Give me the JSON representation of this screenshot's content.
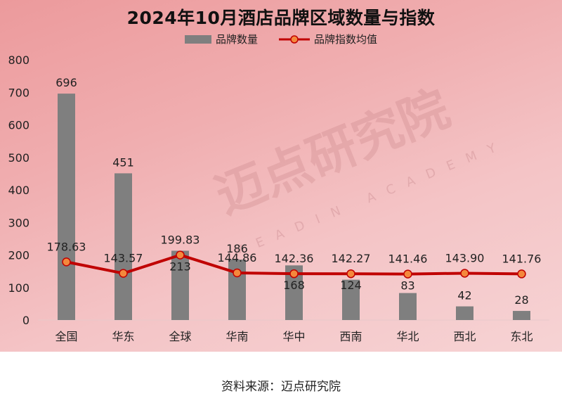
{
  "title": "2024年10月酒店品牌区域数量与指数",
  "legend": {
    "bar_label": "品牌数量",
    "line_label": "品牌指数均值"
  },
  "watermark": {
    "text": "迈点研究院",
    "sub": "MEADIN ACADEMY"
  },
  "source": "资料来源：迈点研究院",
  "colors": {
    "bar": "#7f7f7f",
    "line": "#c00000",
    "marker_fill": "#f4883c",
    "marker_stroke": "#c00000",
    "background_start": "#ec9a9c",
    "background_end": "#f6d3d4"
  },
  "chart_data": {
    "type": "bar",
    "title": "2024年10月酒店品牌区域数量与指数",
    "xlabel": "",
    "ylabel": "",
    "ylim": [
      0,
      800
    ],
    "yticks": [
      0,
      100,
      200,
      300,
      400,
      500,
      600,
      700,
      800
    ],
    "grid": false,
    "legend_position": "top",
    "categories": [
      "全国",
      "华东",
      "全球",
      "华南",
      "华中",
      "西南",
      "华北",
      "西北",
      "东北"
    ],
    "series": [
      {
        "name": "品牌数量",
        "type": "bar",
        "values": [
          696,
          451,
          213,
          186,
          168,
          124,
          83,
          42,
          28
        ]
      },
      {
        "name": "品牌指数均值",
        "type": "line",
        "values": [
          178.63,
          143.57,
          199.83,
          144.86,
          142.36,
          142.27,
          141.46,
          143.9,
          141.76
        ]
      }
    ]
  }
}
